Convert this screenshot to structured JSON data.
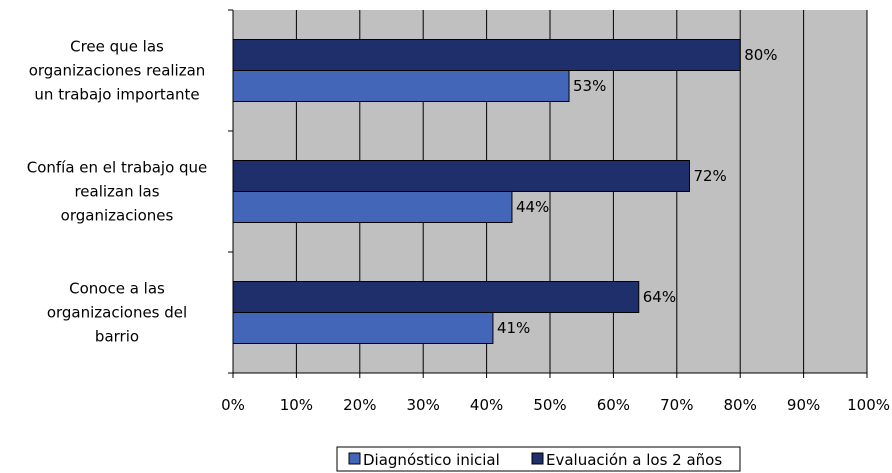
{
  "chart_data": {
    "type": "bar",
    "orientation": "horizontal",
    "title": "",
    "xlabel": "",
    "ylabel": "",
    "xlim": [
      0,
      100
    ],
    "x_ticks": [
      "0%",
      "10%",
      "20%",
      "30%",
      "40%",
      "50%",
      "60%",
      "70%",
      "80%",
      "90%",
      "100%"
    ],
    "grid": true,
    "legend_position": "bottom",
    "categories": [
      [
        "Cree que las",
        "organizaciones realizan",
        "un trabajo importante"
      ],
      [
        "Confía en el trabajo que",
        "realizan las",
        "organizaciones"
      ],
      [
        "Conoce a las",
        "organizaciones del",
        "barrio"
      ]
    ],
    "series": [
      {
        "name": "Evaluación a los 2 años",
        "color": "#1f2f6b",
        "values": [
          80,
          72,
          64
        ],
        "labels": [
          "80%",
          "72%",
          "64%"
        ]
      },
      {
        "name": "Diagnóstico inicial",
        "color": "#4466b8",
        "values": [
          53,
          44,
          41
        ],
        "labels": [
          "53%",
          "44%",
          "41%"
        ]
      }
    ],
    "legend": [
      "Diagnóstico inicial",
      "Evaluación a los 2 años"
    ],
    "plot_background": "#c0c0c0"
  }
}
